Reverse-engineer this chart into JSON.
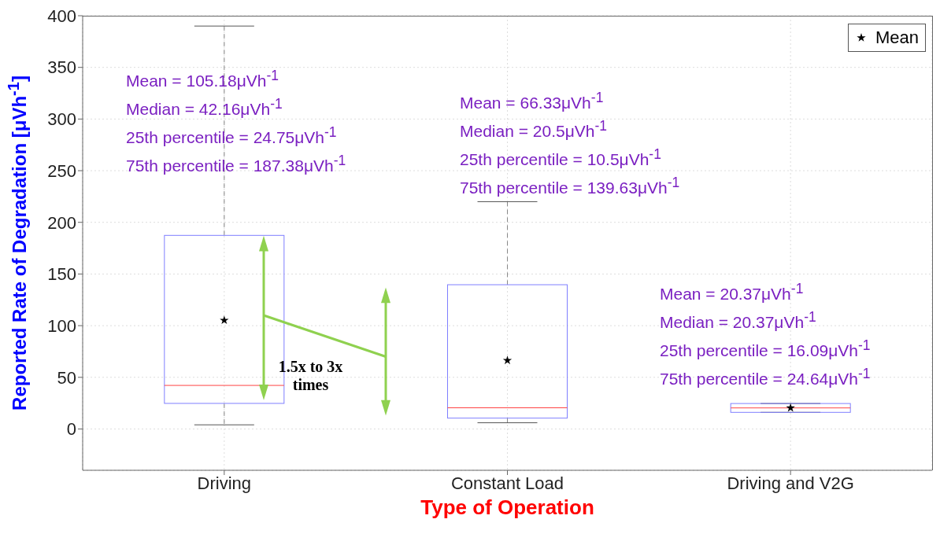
{
  "chart_data": {
    "type": "box",
    "categories": [
      "Driving",
      "Constant Load",
      "Driving and V2G"
    ],
    "xlabel": "Type of Operation",
    "ylabel": "Reported Rate of Degradation [μVh$^{-1}$]",
    "ylim": [
      -40,
      400
    ],
    "yticks": [
      0,
      50,
      100,
      150,
      200,
      250,
      300,
      350,
      400
    ],
    "grid": true,
    "legend": "top right",
    "series": [
      {
        "color": "#7f7fff",
        "boxes": [
          {
            "low": 4,
            "q1": 24.75,
            "median": 42.16,
            "q3": 187.38,
            "high": 390
          },
          {
            "low": 6,
            "q1": 10.5,
            "median": 20.5,
            "q3": 139.63,
            "high": 220
          },
          {
            "low": 16.09,
            "q1": 16.09,
            "median": 20.37,
            "q3": 24.64,
            "high": 24.64
          }
        ]
      },
      {
        "type": "scatter",
        "name": "Mean",
        "color": "#000000",
        "marker": "star",
        "x": [
          "Driving",
          "Constant Load",
          "Driving and V2G"
        ],
        "values": [
          105.18,
          66.33,
          20.37
        ]
      }
    ],
    "annotations": [
      "Mean =  105.18μVh$^{-1}$",
      "Median =  42.16μVh$^{-1}$",
      "25th percentile =  24.75μVh$^{-1}$",
      "75th percentile =  187.38μVh$^{-1}$",
      "Mean =  66.33μVh$^{-1}$",
      "Median =  20.5μVh$^{-1}$",
      "25th percentile =  10.5μVh$^{-1}$",
      "75th percentile =  139.63μVh$^{-1}$",
      "Mean =  20.37μVh$^{-1}$",
      "Median =  20.37μVh$^{-1}$",
      "25th percentile =  16.09μVh$^{-1}$",
      "75th percentile =  24.64μVh$^{-1}$",
      "1.5x to 3x times"
    ]
  }
}
